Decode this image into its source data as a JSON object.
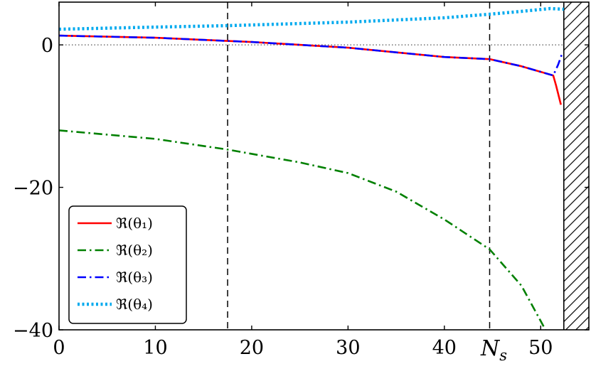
{
  "chart_data": {
    "type": "line",
    "xlabel": "N_s",
    "xlim": [
      0,
      55
    ],
    "ylim": [
      -40,
      6
    ],
    "xticks": [
      0,
      10,
      20,
      30,
      40,
      50
    ],
    "yticks": [
      -40,
      -20,
      0
    ],
    "grid": false,
    "legend_position": "bottom-left",
    "reference_lines": {
      "horizontal_dotted_y": [
        0
      ],
      "vertical_dashed_x": [
        17.5,
        44.7
      ]
    },
    "hatched_region": {
      "x_from": 52.4,
      "x_to": 55
    },
    "series": [
      {
        "name": "ℜ(θ₁)",
        "color": "#ff0000",
        "style": "solid",
        "x": [
          0,
          10,
          20,
          30,
          40,
          44.7,
          48,
          51.3,
          51.6,
          52.1
        ],
        "y": [
          1.3,
          1.0,
          0.4,
          -0.4,
          -1.7,
          -2.0,
          -3.0,
          -4.3,
          -5.7,
          -8.4
        ]
      },
      {
        "name": "ℜ(θ₂)",
        "color": "#008000",
        "style": "dashdot",
        "x": [
          0,
          10,
          17.5,
          25,
          30,
          35,
          40,
          44.7,
          48,
          50.5
        ],
        "y": [
          -12,
          -13.2,
          -14.7,
          -16.5,
          -18,
          -20.6,
          -24.5,
          -28.7,
          -33.8,
          -40
        ]
      },
      {
        "name": "ℜ(θ₃)",
        "color": "#0000ff",
        "style": "dashdot",
        "x": [
          0,
          10,
          20,
          30,
          40,
          44.7,
          48,
          51.3,
          51.8,
          52.2
        ],
        "y": [
          1.3,
          1.0,
          0.4,
          -0.4,
          -1.7,
          -2.0,
          -3.0,
          -4.3,
          -2.8,
          -1.3
        ]
      },
      {
        "name": "ℜ(θ₄)",
        "color": "#00aaee",
        "style": "dotted",
        "x": [
          0,
          10,
          17.5,
          25,
          30,
          40,
          44.7,
          48,
          51,
          52.4
        ],
        "y": [
          2.2,
          2.5,
          2.7,
          3.0,
          3.2,
          3.8,
          4.3,
          4.7,
          5.1,
          5.0
        ]
      }
    ]
  }
}
